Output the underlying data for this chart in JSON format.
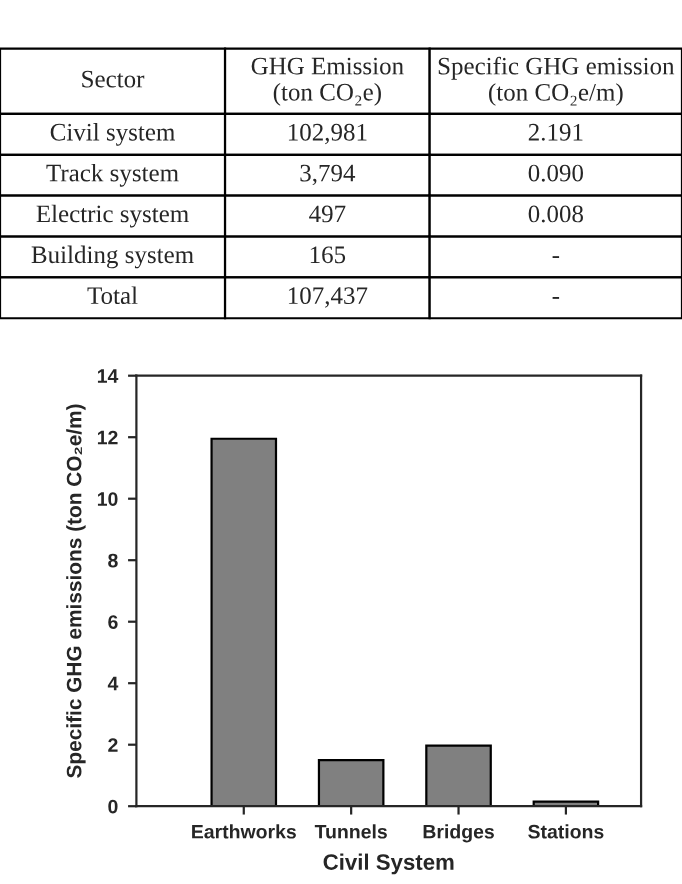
{
  "chart_data": [
    {
      "type": "other",
      "categories": [
        "Sector",
        "GHG Emission\n(ton CO₂e)",
        "Specific GHG emission\n(ton CO₂e/m)"
      ],
      "cell_labels": [
        [
          "Civil system",
          "102,981",
          "2.191"
        ],
        [
          "Track system",
          "3,794",
          "0.090"
        ],
        [
          "Electric system",
          "497",
          "0.008"
        ],
        [
          "Building system",
          "165",
          "-"
        ],
        [
          "Total",
          "107,437",
          "-"
        ]
      ]
    },
    {
      "type": "bar",
      "xlabel": "Civil System",
      "ylabel": "Specific GHG emissions (ton CO₂e/m)",
      "categories": [
        "Earthworks",
        "Tunnels",
        "Bridges",
        "Stations"
      ],
      "values": [
        11.95,
        1.5,
        1.97,
        0.15
      ],
      "color": "#808080",
      "ylim": [
        0,
        14
      ],
      "yticks": [
        0,
        2,
        4,
        6,
        8,
        10,
        12,
        14
      ],
      "grid": false
    }
  ]
}
